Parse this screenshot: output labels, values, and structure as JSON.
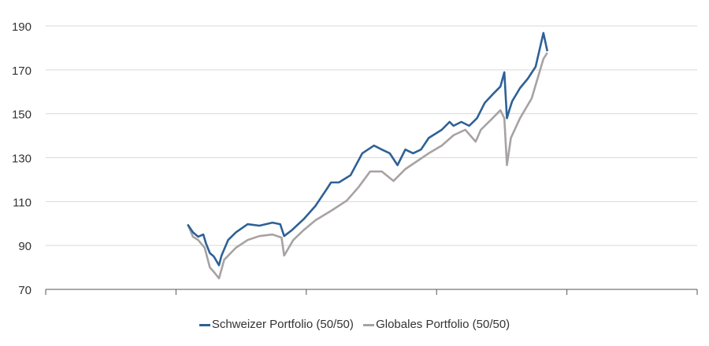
{
  "chart_data": {
    "type": "line",
    "title": "",
    "xlabel": "",
    "ylabel": "",
    "xlim": [
      0,
      5
    ],
    "x_ticks": [
      0,
      1,
      2,
      3,
      4,
      5
    ],
    "x_tick_labels": [],
    "ylim": [
      70,
      190
    ],
    "y_ticks": [
      70,
      90,
      110,
      130,
      150,
      170,
      190
    ],
    "grid": "horizontal",
    "legend_position": "bottom",
    "series": [
      {
        "name": "Schweizer Portfolio (50/50)",
        "color": "#2e6196",
        "x": [
          1.09,
          1.13,
          1.17,
          1.21,
          1.23,
          1.26,
          1.29,
          1.33,
          1.35,
          1.4,
          1.46,
          1.55,
          1.64,
          1.74,
          1.8,
          1.83,
          1.89,
          1.98,
          2.07,
          2.16,
          2.19,
          2.25,
          2.34,
          2.43,
          2.52,
          2.58,
          2.64,
          2.7,
          2.76,
          2.82,
          2.88,
          2.94,
          3.04,
          3.1,
          3.13,
          3.19,
          3.25,
          3.31,
          3.37,
          3.43,
          3.49,
          3.52,
          3.54,
          3.56,
          3.58,
          3.64,
          3.7,
          3.76,
          3.82,
          3.85
        ],
        "y": [
          99.5,
          96,
          94,
          95,
          91,
          86.5,
          85,
          81,
          85.5,
          92.5,
          96,
          99.7,
          99,
          100.4,
          99.7,
          94.3,
          97,
          102,
          108,
          116,
          118.7,
          118.7,
          122,
          132,
          135.5,
          133.7,
          132,
          126.6,
          133.7,
          132,
          133.7,
          139,
          142.7,
          146.3,
          144.5,
          146.3,
          144.5,
          148,
          155,
          158.8,
          162.4,
          168.9,
          148,
          152,
          155.7,
          161.7,
          166,
          171.4,
          186.8,
          178.5
        ]
      },
      {
        "name": "Globales Portfolio (50/50)",
        "color": "#a8a2a2",
        "x": [
          1.09,
          1.13,
          1.17,
          1.22,
          1.26,
          1.29,
          1.33,
          1.37,
          1.46,
          1.55,
          1.64,
          1.74,
          1.81,
          1.83,
          1.9,
          1.98,
          2.07,
          2.19,
          2.31,
          2.4,
          2.49,
          2.58,
          2.67,
          2.76,
          2.85,
          2.94,
          3.04,
          3.13,
          3.22,
          3.3,
          3.34,
          3.43,
          3.49,
          3.52,
          3.54,
          3.57,
          3.64,
          3.73,
          3.82,
          3.85
        ],
        "y": [
          99.7,
          94,
          92.5,
          89,
          80,
          78,
          75,
          83.5,
          89,
          92.5,
          94.3,
          95,
          93.6,
          85.4,
          92.5,
          97,
          101.5,
          105.8,
          110.4,
          116.5,
          123.7,
          123.7,
          119.4,
          124.8,
          128.4,
          132,
          135.5,
          140.2,
          142.7,
          137.3,
          142.7,
          148,
          151.6,
          148,
          126.6,
          139,
          148,
          157,
          175,
          177.8
        ]
      }
    ]
  }
}
